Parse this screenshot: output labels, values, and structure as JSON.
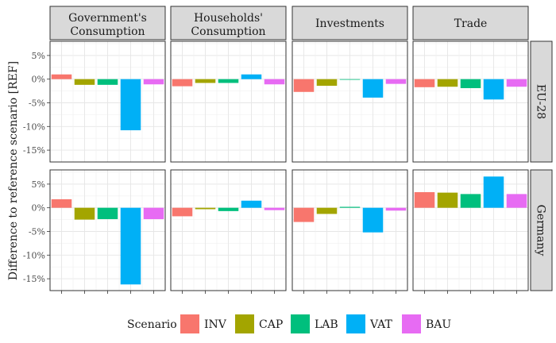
{
  "chart_data": {
    "type": "bar",
    "facet_columns": [
      "Government's Consumption",
      "Households' Consumption",
      "Investments",
      "Trade"
    ],
    "facet_rows": [
      "EU-28",
      "Germany"
    ],
    "categories": [
      "INV",
      "CAP",
      "LAB",
      "VAT",
      "BAU"
    ],
    "ylabel": "Difference to reference scenario [REF]",
    "ylim": [
      -17.5,
      8
    ],
    "yticks": [
      5,
      0,
      -5,
      -10,
      -15
    ],
    "ytick_labels": [
      "5%",
      "0%",
      "-5%",
      "-10%",
      "-15%"
    ],
    "grid": true,
    "legend": {
      "title": "Scenario",
      "position": "bottom",
      "entries": [
        "INV",
        "CAP",
        "LAB",
        "VAT",
        "BAU"
      ]
    },
    "colors": {
      "INV": "#F8766D",
      "CAP": "#A3A500",
      "LAB": "#00BF7D",
      "VAT": "#00B0F6",
      "BAU": "#E76BF3"
    },
    "panels": [
      {
        "row": "EU-28",
        "column": "Government's Consumption",
        "values": [
          1.0,
          -1.2,
          -1.2,
          -10.8,
          -1.1
        ]
      },
      {
        "row": "EU-28",
        "column": "Households' Consumption",
        "values": [
          -1.5,
          -0.8,
          -0.8,
          1.0,
          -1.1
        ]
      },
      {
        "row": "EU-28",
        "column": "Investments",
        "values": [
          -2.7,
          -1.4,
          0.0,
          -3.9,
          -1.0
        ]
      },
      {
        "row": "EU-28",
        "column": "Trade",
        "values": [
          -1.7,
          -1.6,
          -1.9,
          -4.3,
          -1.6
        ]
      },
      {
        "row": "Germany",
        "column": "Government's Consumption",
        "values": [
          1.8,
          -2.5,
          -2.4,
          -16.2,
          -2.4
        ]
      },
      {
        "row": "Germany",
        "column": "Households' Consumption",
        "values": [
          -1.8,
          -0.3,
          -0.7,
          1.5,
          -0.5
        ]
      },
      {
        "row": "Germany",
        "column": "Investments",
        "values": [
          -3.0,
          -1.3,
          0.2,
          -5.2,
          -0.6
        ]
      },
      {
        "row": "Germany",
        "column": "Trade",
        "values": [
          3.3,
          3.2,
          2.9,
          6.6,
          2.9
        ]
      }
    ]
  }
}
